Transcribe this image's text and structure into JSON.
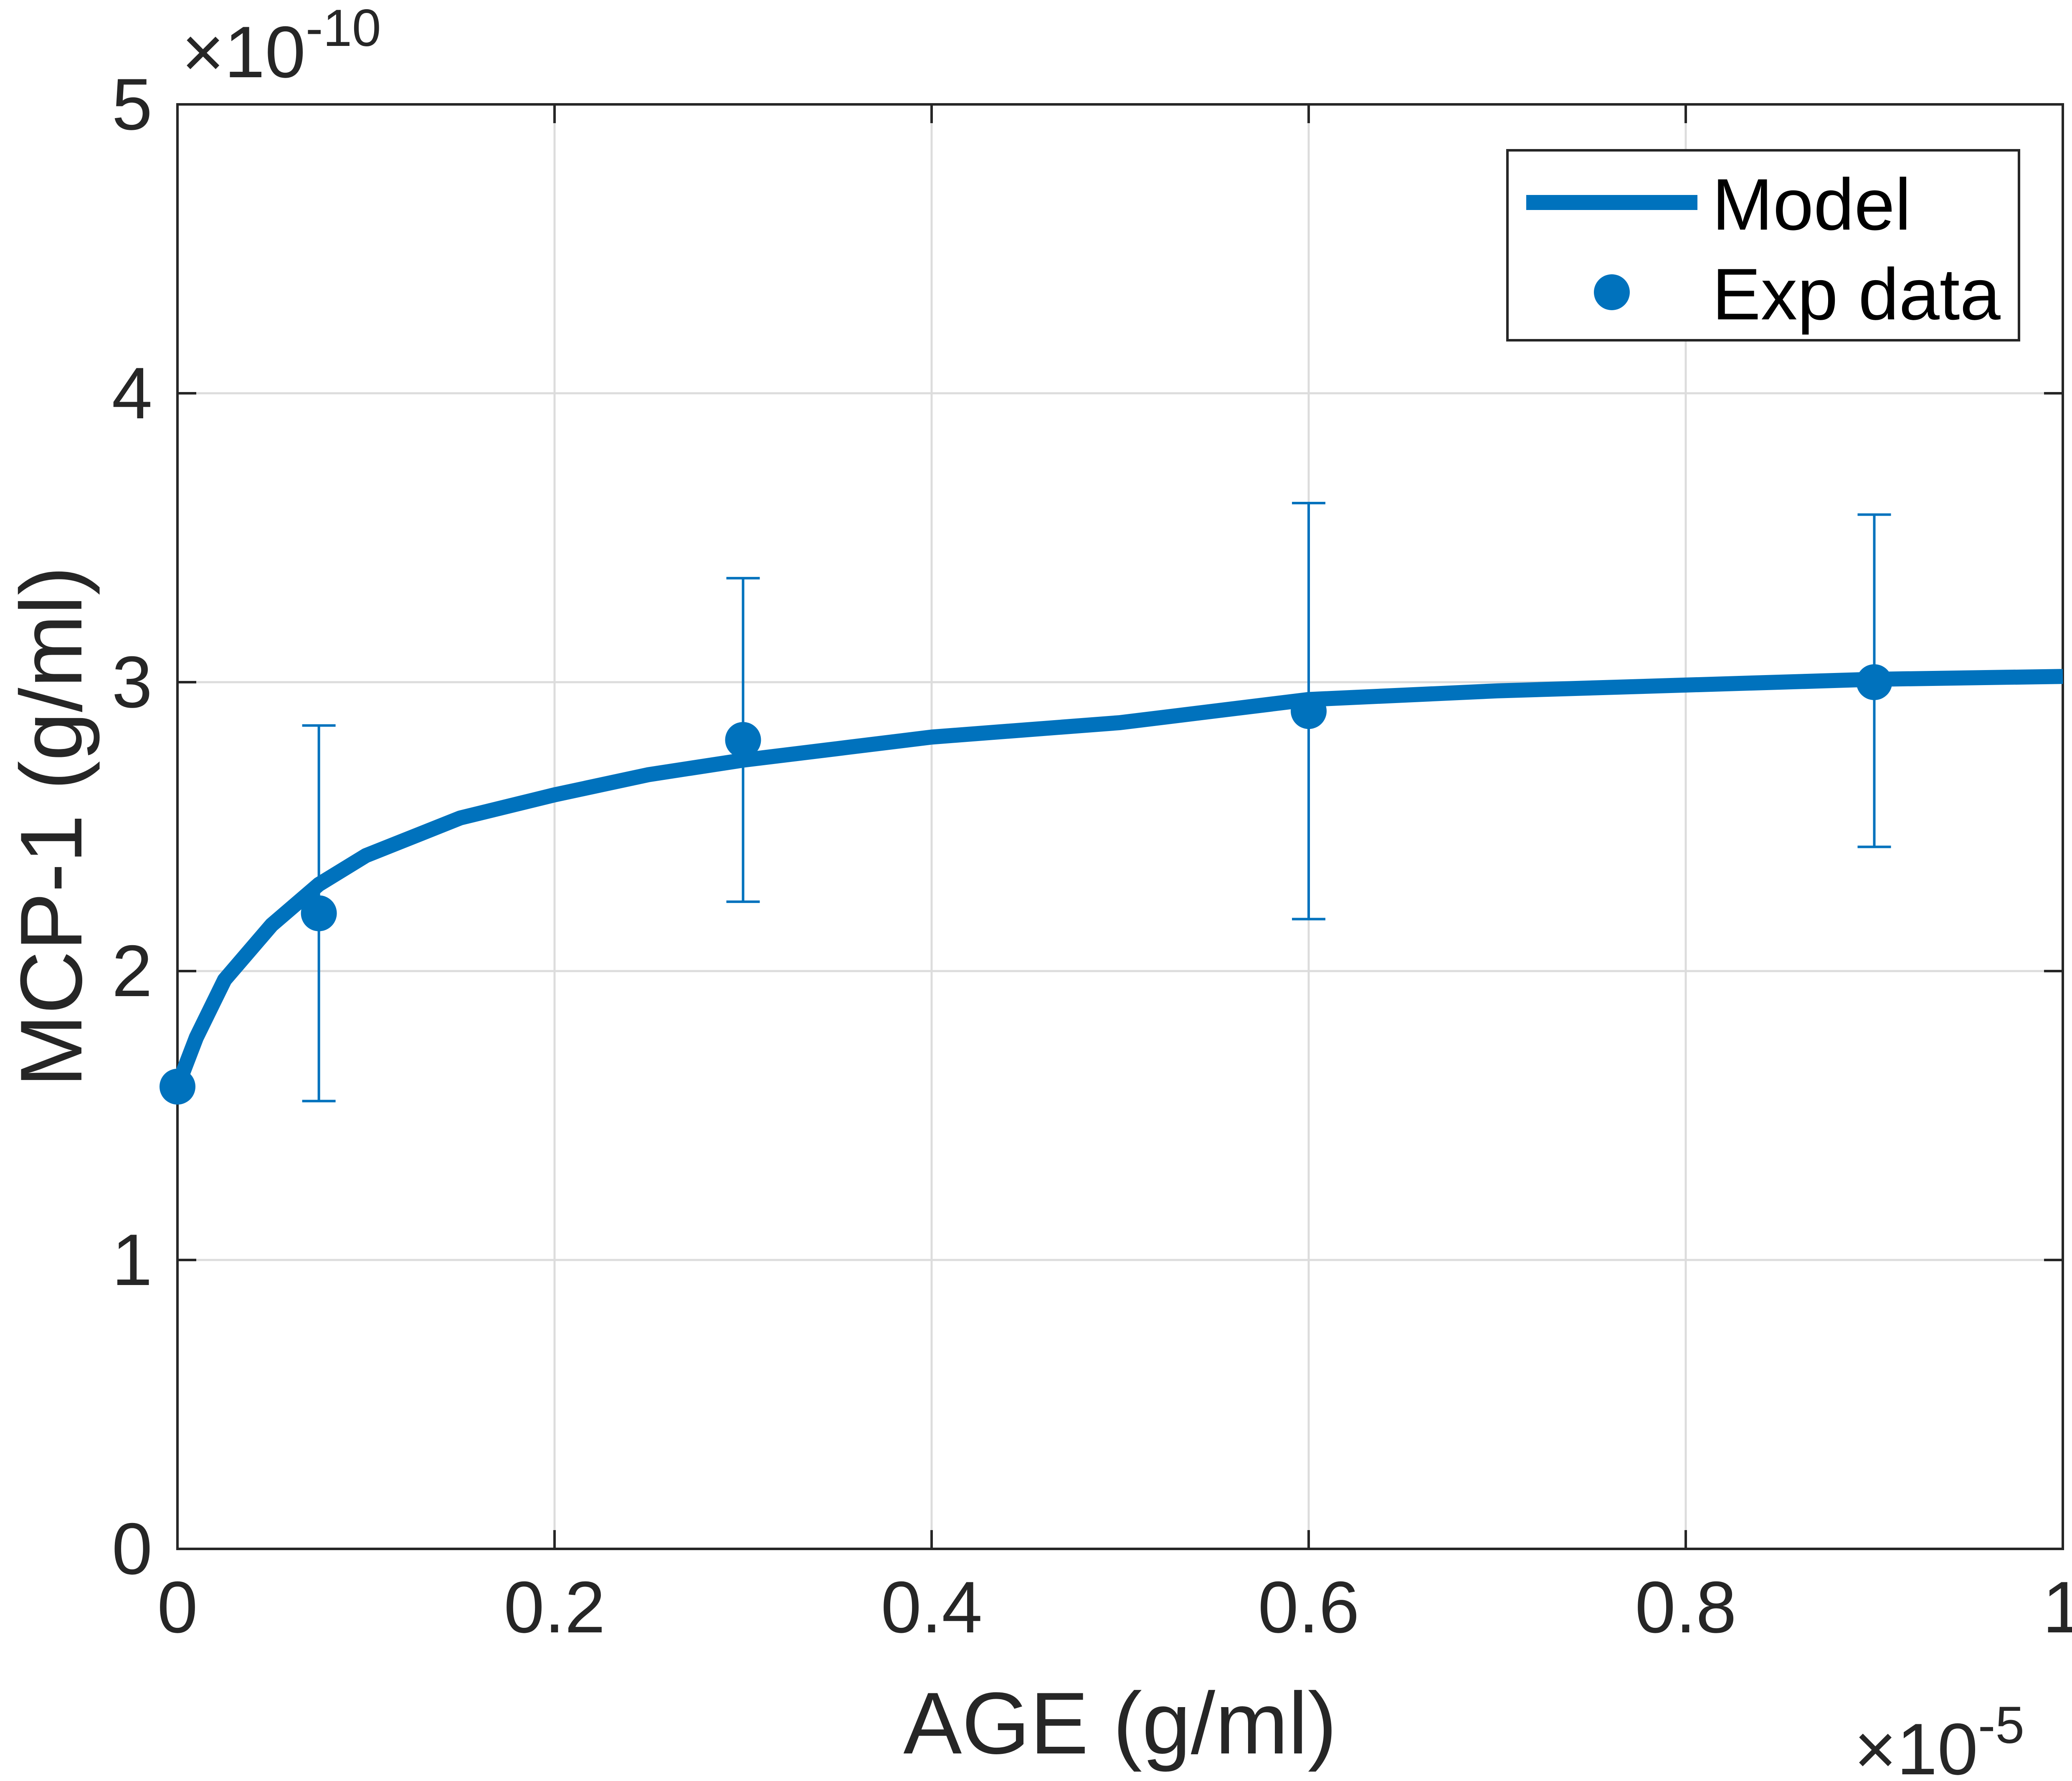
{
  "chart_data": {
    "type": "line",
    "title": "",
    "xlabel": "AGE (g/ml)",
    "ylabel": "MCP-1 (g/ml)",
    "x_multiplier": {
      "base": "×10",
      "exponent": "-5"
    },
    "y_multiplier": {
      "base": "×10",
      "exponent": "-10"
    },
    "xlim": [
      0,
      1
    ],
    "ylim": [
      0,
      5
    ],
    "xticks": [
      0,
      0.2,
      0.4,
      0.6,
      0.8,
      1
    ],
    "xtick_labels": [
      "0",
      "0.2",
      "0.4",
      "0.6",
      "0.8",
      "1"
    ],
    "yticks": [
      0,
      1,
      2,
      3,
      4,
      5
    ],
    "ytick_labels": [
      "0",
      "1",
      "2",
      "3",
      "4",
      "5"
    ],
    "grid": true,
    "legend_position": "top-right",
    "series": [
      {
        "name": "Model",
        "kind": "line",
        "color": "#0072BD",
        "x": [
          0,
          0.01,
          0.025,
          0.05,
          0.075,
          0.1,
          0.15,
          0.2,
          0.25,
          0.3,
          0.35,
          0.4,
          0.5,
          0.6,
          0.7,
          0.8,
          0.9,
          1.0
        ],
        "y": [
          1.6,
          1.77,
          1.97,
          2.16,
          2.3,
          2.4,
          2.53,
          2.61,
          2.68,
          2.73,
          2.77,
          2.81,
          2.86,
          2.94,
          2.97,
          2.99,
          3.01,
          3.02
        ]
      },
      {
        "name": "Exp data",
        "kind": "errorbar",
        "color": "#0072BD",
        "x": [
          0,
          0.075,
          0.3,
          0.6,
          0.9
        ],
        "y": [
          1.6,
          2.2,
          2.8,
          2.9,
          3.0
        ],
        "err_low": [
          null,
          1.55,
          2.24,
          2.18,
          2.43
        ],
        "err_high": [
          null,
          2.85,
          3.36,
          3.62,
          3.58
        ]
      }
    ]
  }
}
